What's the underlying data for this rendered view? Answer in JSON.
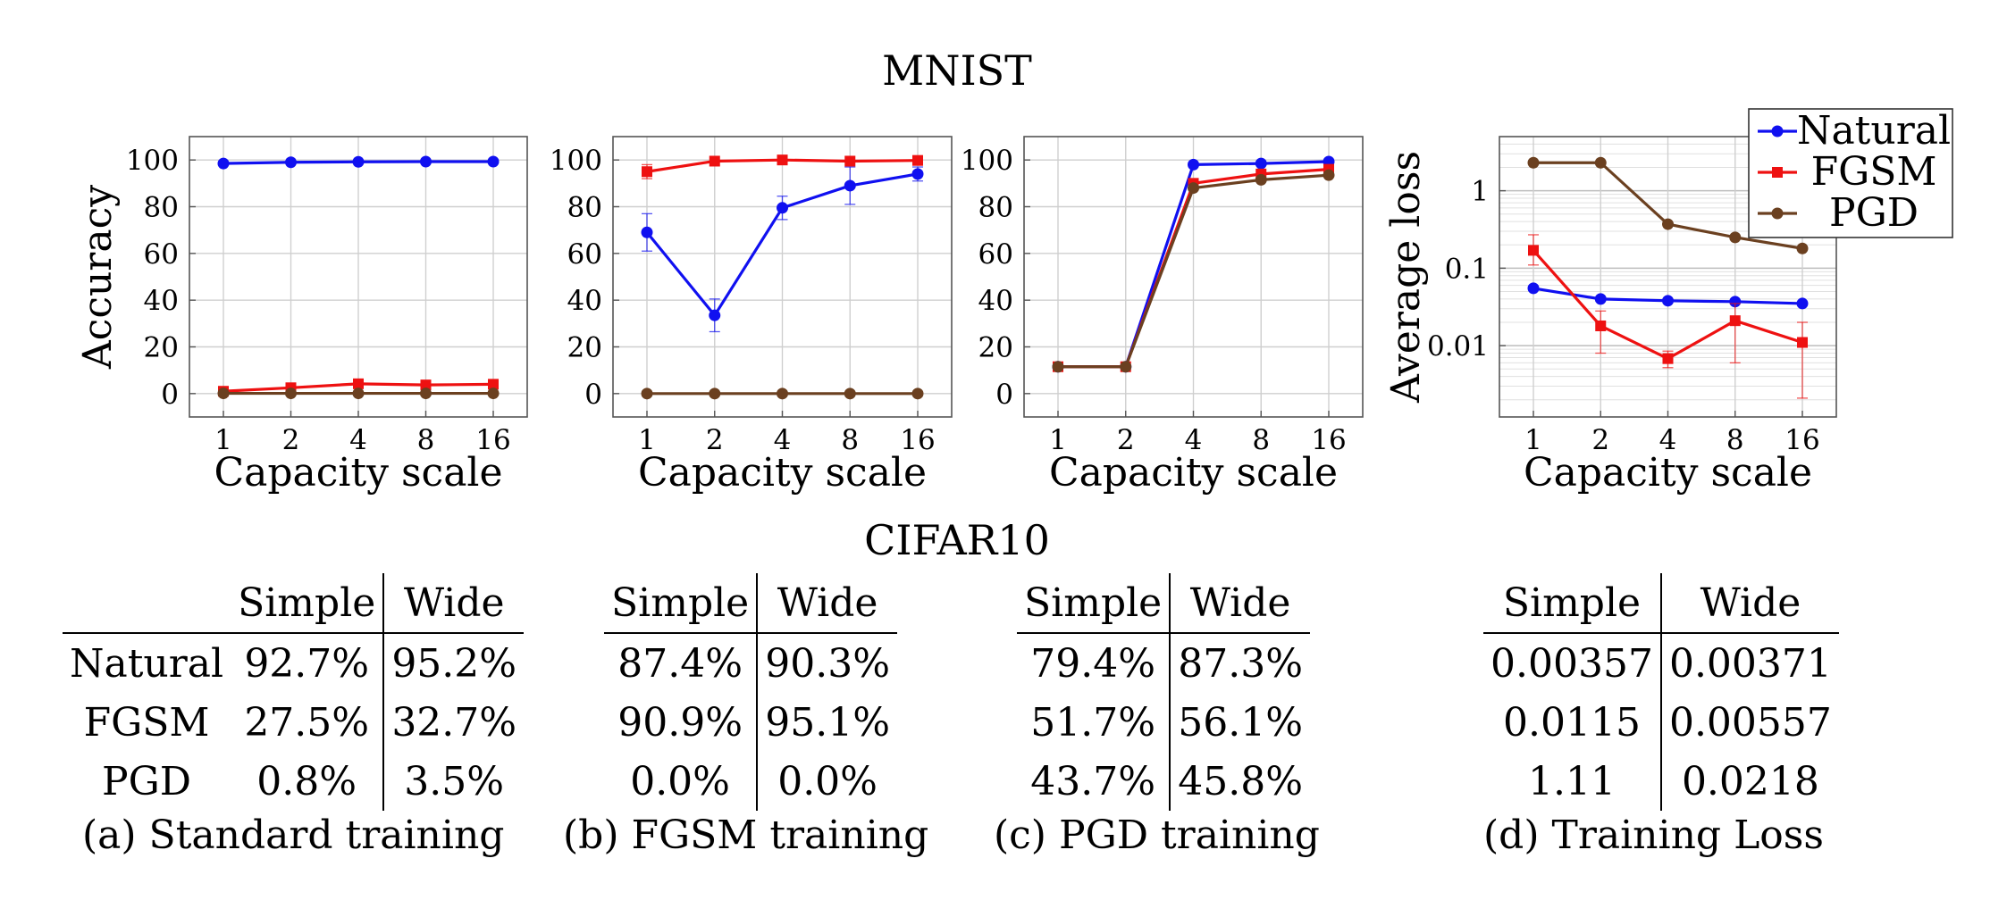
{
  "titles": {
    "top": "MNIST",
    "bottom": "CIFAR10"
  },
  "colors": {
    "Natural": "#1010f0",
    "FGSM": "#ee1111",
    "PGD": "#6b4020",
    "grid": "#cfcfcf",
    "frame": "#555555"
  },
  "chart_data": [
    {
      "type": "line",
      "xlabel": "Capacity scale",
      "ylabel": "Accuracy",
      "x": [
        "1",
        "2",
        "4",
        "8",
        "16"
      ],
      "yticks": [
        "0",
        "20",
        "40",
        "60",
        "80",
        "100"
      ],
      "ylim": [
        -10,
        110
      ],
      "grid": true,
      "series": [
        {
          "name": "Natural",
          "values": [
            98.5,
            99.0,
            99.2,
            99.3,
            99.3
          ],
          "err": [
            0,
            0,
            0,
            0,
            0
          ]
        },
        {
          "name": "FGSM",
          "values": [
            1.0,
            2.5,
            4.2,
            3.7,
            4.0
          ],
          "err": [
            0,
            0,
            0,
            0,
            0
          ]
        },
        {
          "name": "PGD",
          "values": [
            0.1,
            0.1,
            0.1,
            0.1,
            0.1
          ],
          "err": [
            0,
            0,
            0,
            0,
            0
          ]
        }
      ]
    },
    {
      "type": "line",
      "xlabel": "Capacity scale",
      "ylabel": "",
      "x": [
        "1",
        "2",
        "4",
        "8",
        "16"
      ],
      "yticks": [
        "0",
        "20",
        "40",
        "60",
        "80",
        "100"
      ],
      "ylim": [
        -10,
        110
      ],
      "grid": true,
      "series": [
        {
          "name": "Natural",
          "values": [
            69.0,
            33.5,
            79.5,
            89.0,
            94.0
          ],
          "err": [
            8,
            7,
            5,
            8,
            3
          ]
        },
        {
          "name": "FGSM",
          "values": [
            95.0,
            99.5,
            100.0,
            99.5,
            99.8
          ],
          "err": [
            3,
            0,
            0,
            0,
            0
          ]
        },
        {
          "name": "PGD",
          "values": [
            0.0,
            0.0,
            0.0,
            0.0,
            0.0
          ],
          "err": [
            0,
            0,
            0,
            0,
            0
          ]
        }
      ]
    },
    {
      "type": "line",
      "xlabel": "Capacity scale",
      "ylabel": "",
      "x": [
        "1",
        "2",
        "4",
        "8",
        "16"
      ],
      "yticks": [
        "0",
        "20",
        "40",
        "60",
        "80",
        "100"
      ],
      "ylim": [
        -10,
        110
      ],
      "grid": true,
      "series": [
        {
          "name": "Natural",
          "values": [
            11.5,
            11.5,
            98.0,
            98.5,
            99.3
          ],
          "err": [
            0,
            0,
            0,
            0,
            0
          ]
        },
        {
          "name": "FGSM",
          "values": [
            11.5,
            11.5,
            90.0,
            94.0,
            96.0
          ],
          "err": [
            0,
            0,
            0,
            0,
            0
          ]
        },
        {
          "name": "PGD",
          "values": [
            11.5,
            11.5,
            88.0,
            91.5,
            93.5
          ],
          "err": [
            0,
            0,
            0,
            0,
            0
          ]
        }
      ]
    },
    {
      "type": "line",
      "scale": "log",
      "xlabel": "Capacity scale",
      "ylabel": "Average loss",
      "x": [
        "1",
        "2",
        "4",
        "8",
        "16"
      ],
      "yticks": [
        "0.01",
        "0.1",
        "1"
      ],
      "ytick_values": [
        0.01,
        0.1,
        1
      ],
      "ylim": [
        0.0012,
        5
      ],
      "grid": true,
      "legend": "top-right",
      "series": [
        {
          "name": "Natural",
          "values": [
            0.055,
            0.04,
            0.038,
            0.037,
            0.035
          ],
          "lo": [
            0.055,
            0.04,
            0.038,
            0.037,
            0.035
          ],
          "hi": [
            0.055,
            0.04,
            0.038,
            0.037,
            0.035
          ]
        },
        {
          "name": "FGSM",
          "values": [
            0.17,
            0.018,
            0.0068,
            0.021,
            0.011
          ],
          "lo": [
            0.11,
            0.008,
            0.0052,
            0.006,
            0.0021
          ],
          "hi": [
            0.27,
            0.028,
            0.0085,
            0.035,
            0.02
          ]
        },
        {
          "name": "PGD",
          "values": [
            2.3,
            2.3,
            0.37,
            0.25,
            0.18
          ],
          "lo": [
            2.3,
            2.3,
            0.37,
            0.25,
            0.18
          ],
          "hi": [
            2.3,
            2.3,
            0.37,
            0.25,
            0.18
          ]
        }
      ]
    }
  ],
  "tables": [
    {
      "headers": [
        "",
        "Simple",
        "Wide"
      ],
      "rows": [
        [
          "Natural",
          "92.7%",
          "95.2%"
        ],
        [
          "FGSM",
          "27.5%",
          "32.7%"
        ],
        [
          "PGD",
          "0.8%",
          "3.5%"
        ]
      ],
      "caption": "(a) Standard training"
    },
    {
      "headers": [
        "Simple",
        "Wide"
      ],
      "rows": [
        [
          "87.4%",
          "90.3%"
        ],
        [
          "90.9%",
          "95.1%"
        ],
        [
          "0.0%",
          "0.0%"
        ]
      ],
      "caption": "(b) FGSM training"
    },
    {
      "headers": [
        "Simple",
        "Wide"
      ],
      "rows": [
        [
          "79.4%",
          "87.3%"
        ],
        [
          "51.7%",
          "56.1%"
        ],
        [
          "43.7%",
          "45.8%"
        ]
      ],
      "caption": "(c) PGD training"
    },
    {
      "headers": [
        "Simple",
        "Wide"
      ],
      "rows": [
        [
          "0.00357",
          "0.00371"
        ],
        [
          "0.0115",
          "0.00557"
        ],
        [
          "1.11",
          "0.0218"
        ]
      ],
      "caption": "(d) Training Loss"
    }
  ]
}
